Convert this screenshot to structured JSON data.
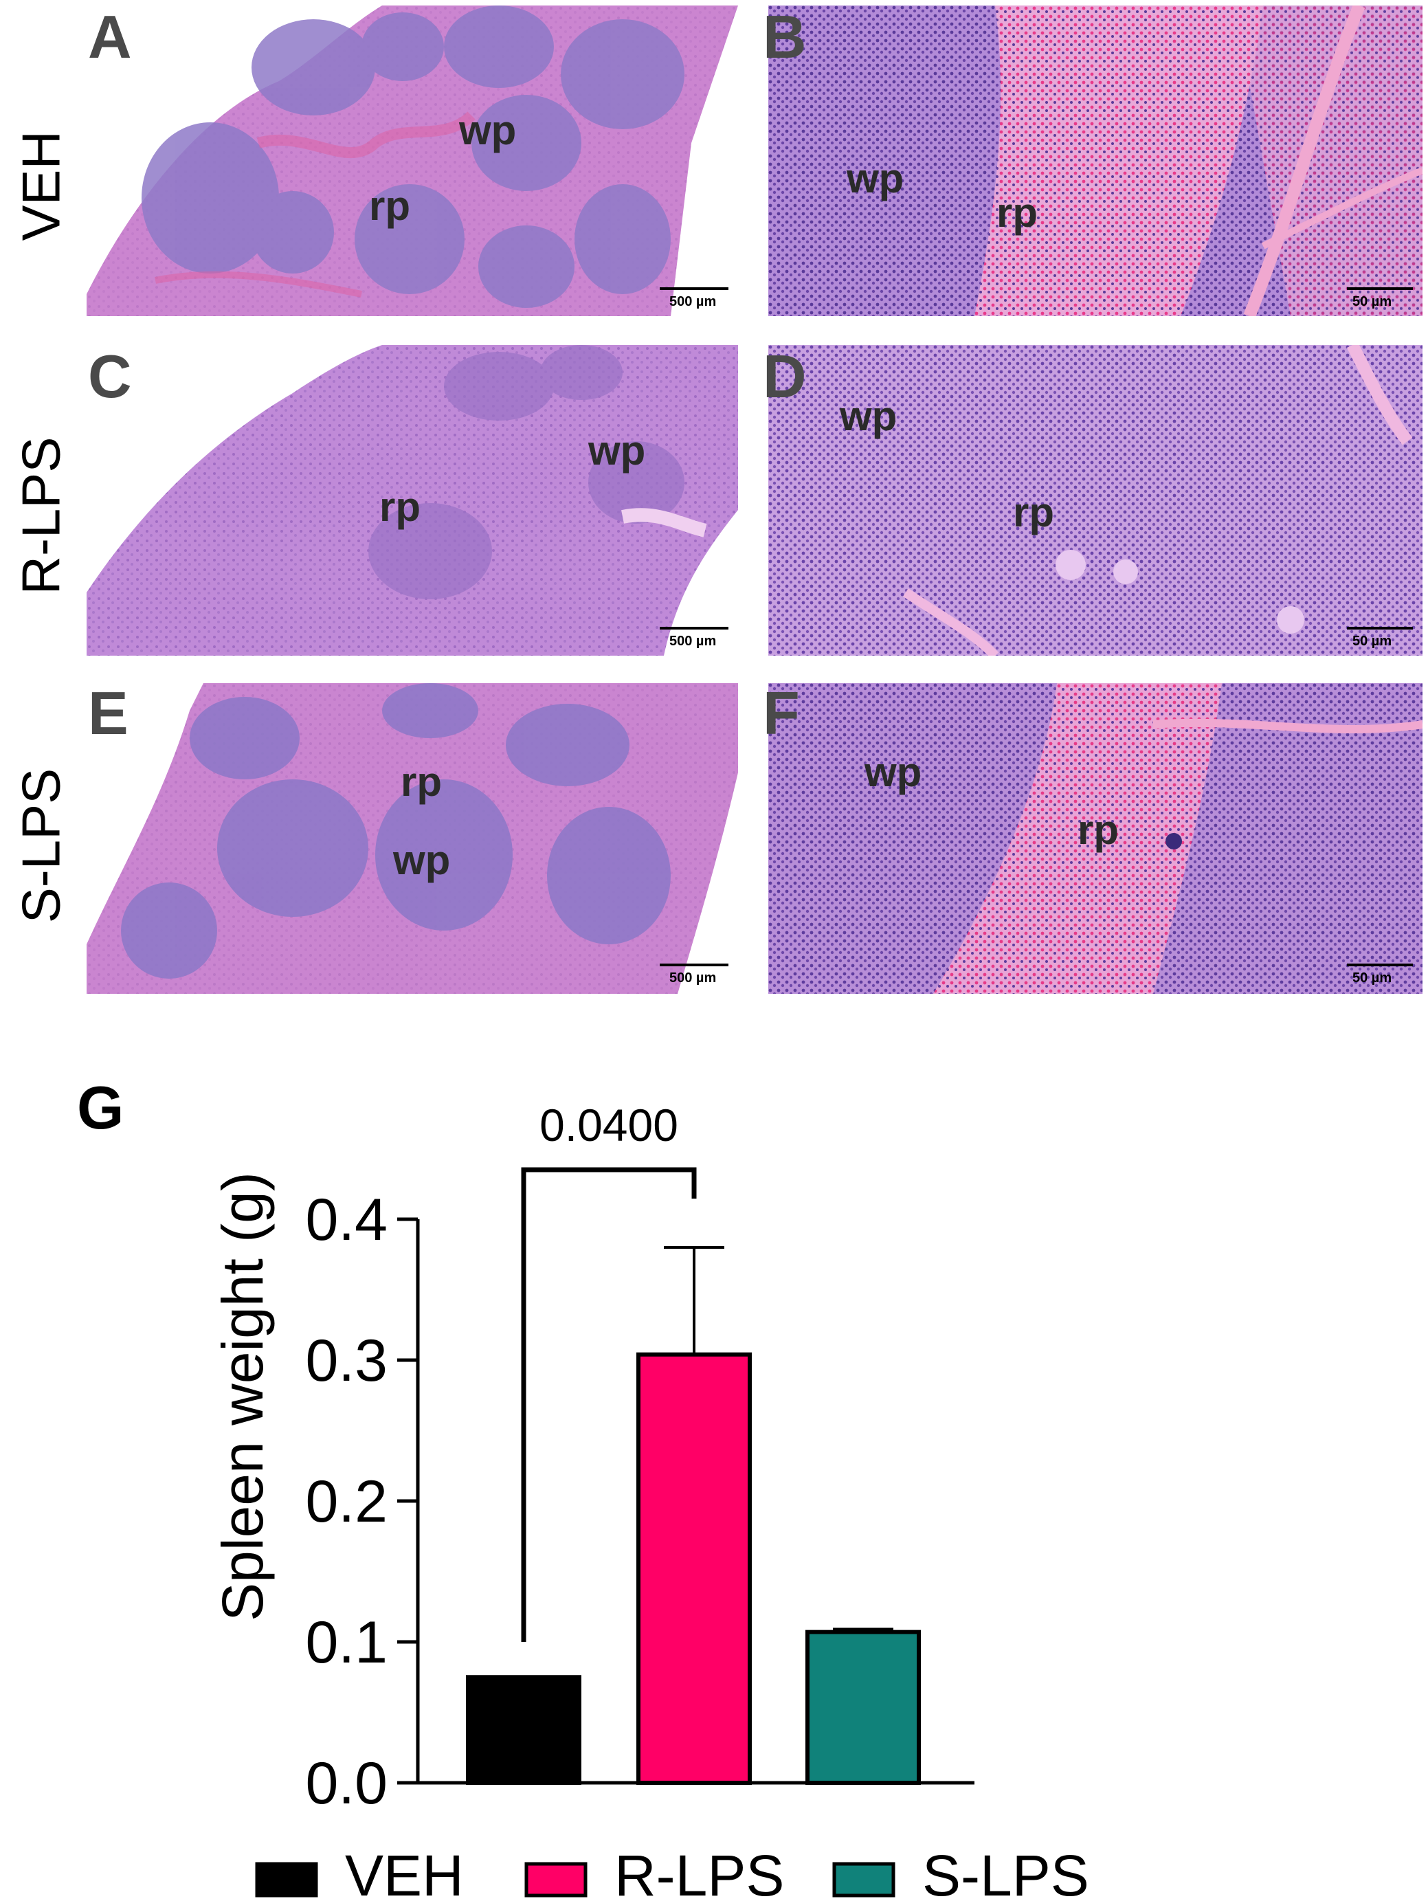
{
  "row_labels": [
    "VEH",
    "R-LPS",
    "S-LPS"
  ],
  "panels": [
    {
      "letter": "A",
      "labels": [
        "wp",
        "rp"
      ],
      "scale": "500 µm"
    },
    {
      "letter": "B",
      "labels": [
        "wp",
        "rp"
      ],
      "scale": "50 µm"
    },
    {
      "letter": "C",
      "labels": [
        "wp",
        "rp"
      ],
      "scale": "500 µm"
    },
    {
      "letter": "D",
      "labels": [
        "wp",
        "rp"
      ],
      "scale": "50 µm"
    },
    {
      "letter": "E",
      "labels": [
        "rp",
        "wp"
      ],
      "scale": "500 µm"
    },
    {
      "letter": "F",
      "labels": [
        "wp",
        "rp"
      ],
      "scale": "50 µm"
    }
  ],
  "chart_data": {
    "panel_letter": "G",
    "type": "bar",
    "categories": [
      "VEH",
      "R-LPS",
      "S-LPS"
    ],
    "values": [
      0.075,
      0.304,
      0.107
    ],
    "errors": [
      0.0,
      0.076,
      0.002
    ],
    "colors": [
      "#000000",
      "#ff0066",
      "#10827a"
    ],
    "ylabel": "Spleen weight (g)",
    "xlabel": "",
    "ylim": [
      0.0,
      0.4
    ],
    "yticks": [
      "0.0",
      "0.1",
      "0.2",
      "0.3",
      "0.4"
    ],
    "significance": {
      "from": "VEH",
      "to": "R-LPS",
      "label": "0.0400"
    },
    "legend": [
      "VEH",
      "R-LPS",
      "S-LPS"
    ],
    "legend_position": "bottom"
  }
}
